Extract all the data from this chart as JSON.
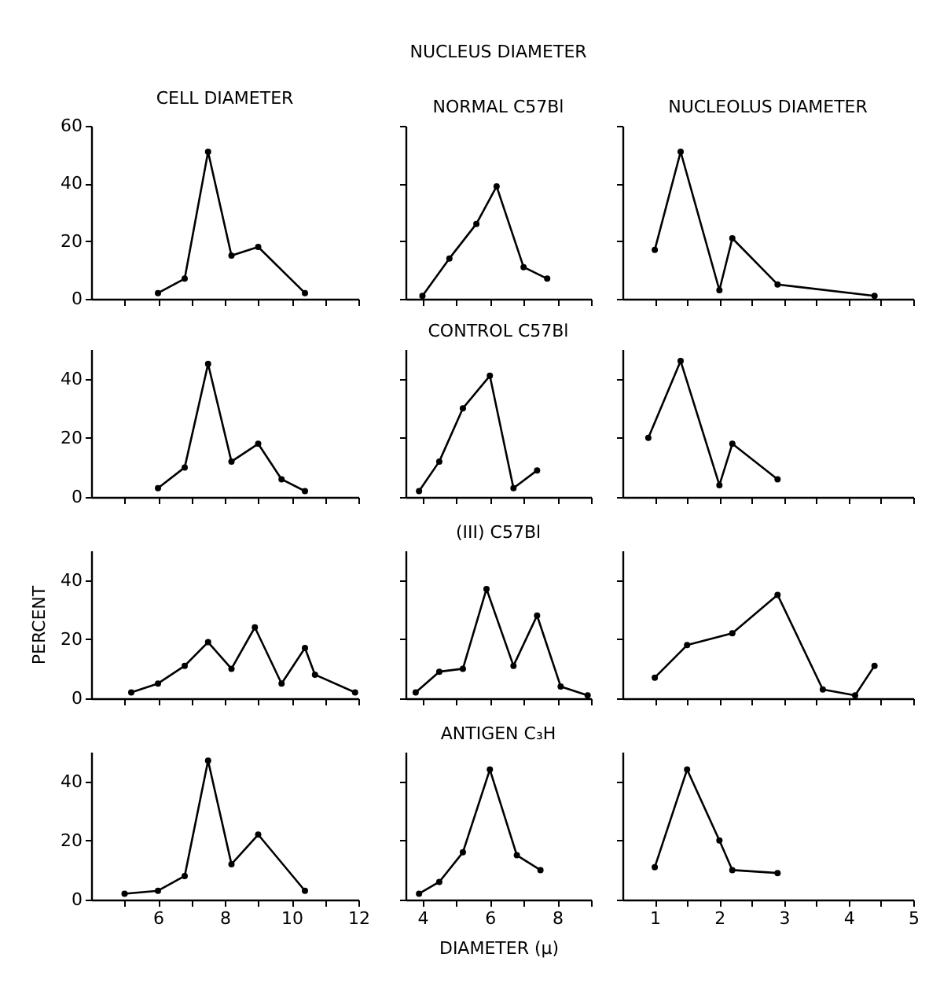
{
  "chart_data": [
    {
      "type": "line",
      "title": "CELL DIAMETER",
      "x": [
        6.0,
        6.8,
        7.5,
        8.2,
        9.0,
        10.4
      ],
      "series": [
        {
          "color": "#000000",
          "values": [
            2,
            7,
            51,
            15,
            18,
            2
          ]
        }
      ],
      "xlim": [
        4,
        12
      ],
      "xticks": [
        {
          "value": 5,
          "label": null
        },
        6,
        {
          "value": 7,
          "label": null
        },
        8,
        {
          "value": 9,
          "label": null
        },
        10,
        {
          "value": 11,
          "label": null
        },
        12
      ],
      "ylim": [
        0,
        60
      ],
      "yticks": [
        0,
        20,
        40,
        60
      ],
      "tick_labels": "y",
      "marker": "circle",
      "line_style": "solid"
    },
    {
      "type": "line",
      "title": "NUCLEUS DIAMETER",
      "subtitle": "NORMAL C57Bl",
      "x": [
        4.0,
        4.8,
        5.6,
        6.2,
        7.0,
        7.7
      ],
      "series": [
        {
          "color": "#000000",
          "values": [
            1,
            14,
            26,
            39,
            11,
            7
          ]
        }
      ],
      "xlim": [
        3.5,
        9
      ],
      "xticks": [
        4,
        {
          "value": 5,
          "label": null
        },
        6,
        {
          "value": 7,
          "label": null
        },
        8,
        {
          "value": 9,
          "label": null
        }
      ],
      "ylim": [
        0,
        60
      ],
      "yticks": [
        0,
        20,
        40,
        60
      ],
      "tick_labels": false,
      "marker": "circle",
      "line_style": "solid"
    },
    {
      "type": "line",
      "title": "NUCLEOLUS DIAMETER",
      "x": [
        1.0,
        1.4,
        2.0,
        2.2,
        2.9,
        4.4
      ],
      "series": [
        {
          "color": "#000000",
          "values": [
            17,
            51,
            3,
            21,
            5,
            1
          ]
        }
      ],
      "xlim": [
        0.5,
        5
      ],
      "xticks": [
        1,
        {
          "value": 1.5,
          "label": null
        },
        2,
        {
          "value": 2.5,
          "label": null
        },
        3,
        {
          "value": 3.5,
          "label": null
        },
        4,
        {
          "value": 4.5,
          "label": null
        },
        5
      ],
      "ylim": [
        0,
        60
      ],
      "yticks": [
        0,
        20,
        40,
        60
      ],
      "tick_labels": false,
      "marker": "circle",
      "line_style": "solid"
    },
    {
      "type": "line",
      "x": [
        6.0,
        6.8,
        7.5,
        8.2,
        9.0,
        9.7,
        10.4
      ],
      "series": [
        {
          "color": "#000000",
          "values": [
            3,
            10,
            45,
            12,
            18,
            6,
            2
          ]
        }
      ],
      "xlim": [
        4,
        12
      ],
      "xticks": [
        {
          "value": 5,
          "label": null
        },
        6,
        {
          "value": 7,
          "label": null
        },
        8,
        {
          "value": 9,
          "label": null
        },
        10,
        {
          "value": 11,
          "label": null
        },
        12
      ],
      "ylim": [
        0,
        50
      ],
      "yticks": [
        0,
        20,
        40
      ],
      "tick_labels": "y",
      "marker": "circle",
      "line_style": "solid"
    },
    {
      "type": "line",
      "subtitle": "CONTROL C57Bl",
      "x": [
        3.9,
        4.5,
        5.2,
        6.0,
        6.7,
        7.4
      ],
      "series": [
        {
          "color": "#000000",
          "values": [
            2,
            12,
            30,
            41,
            3,
            9
          ]
        }
      ],
      "xlim": [
        3.5,
        9
      ],
      "xticks": [
        4,
        {
          "value": 5,
          "label": null
        },
        6,
        {
          "value": 7,
          "label": null
        },
        8,
        {
          "value": 9,
          "label": null
        }
      ],
      "ylim": [
        0,
        50
      ],
      "yticks": [
        0,
        20,
        40
      ],
      "tick_labels": false,
      "marker": "circle",
      "line_style": "solid"
    },
    {
      "type": "line",
      "x": [
        0.9,
        1.4,
        2.0,
        2.2,
        2.9
      ],
      "series": [
        {
          "color": "#000000",
          "values": [
            20,
            46,
            4,
            18,
            6
          ]
        }
      ],
      "xlim": [
        0.5,
        5
      ],
      "xticks": [
        1,
        {
          "value": 1.5,
          "label": null
        },
        2,
        {
          "value": 2.5,
          "label": null
        },
        3,
        {
          "value": 3.5,
          "label": null
        },
        4,
        {
          "value": 4.5,
          "label": null
        },
        5
      ],
      "ylim": [
        0,
        50
      ],
      "yticks": [
        0,
        20,
        40
      ],
      "tick_labels": false,
      "marker": "circle",
      "line_style": "solid"
    },
    {
      "type": "line",
      "ylabel": "PERCENT",
      "x": [
        5.2,
        6.0,
        6.8,
        7.5,
        8.2,
        8.9,
        9.7,
        10.4,
        10.7,
        11.9
      ],
      "series": [
        {
          "color": "#000000",
          "values": [
            2,
            5,
            11,
            19,
            10,
            24,
            5,
            17,
            8,
            2
          ]
        }
      ],
      "xlim": [
        4,
        12
      ],
      "xticks": [
        {
          "value": 5,
          "label": null
        },
        6,
        {
          "value": 7,
          "label": null
        },
        8,
        {
          "value": 9,
          "label": null
        },
        10,
        {
          "value": 11,
          "label": null
        },
        12
      ],
      "ylim": [
        0,
        50
      ],
      "yticks": [
        0,
        20,
        40
      ],
      "tick_labels": "y",
      "marker": "circle",
      "line_style": "solid"
    },
    {
      "type": "line",
      "subtitle": "(III) C57Bl",
      "x": [
        3.8,
        4.5,
        5.2,
        5.9,
        6.7,
        7.4,
        8.1,
        8.9
      ],
      "series": [
        {
          "color": "#000000",
          "values": [
            2,
            9,
            10,
            37,
            11,
            28,
            4,
            1
          ]
        }
      ],
      "xlim": [
        3.5,
        9
      ],
      "xticks": [
        4,
        {
          "value": 5,
          "label": null
        },
        6,
        {
          "value": 7,
          "label": null
        },
        8,
        {
          "value": 9,
          "label": null
        }
      ],
      "ylim": [
        0,
        50
      ],
      "yticks": [
        0,
        20,
        40
      ],
      "tick_labels": false,
      "marker": "circle",
      "line_style": "solid"
    },
    {
      "type": "line",
      "x": [
        1.0,
        1.5,
        2.2,
        2.9,
        3.6,
        4.1,
        4.4
      ],
      "series": [
        {
          "color": "#000000",
          "values": [
            7,
            18,
            22,
            35,
            3,
            1,
            11
          ]
        }
      ],
      "xlim": [
        0.5,
        5
      ],
      "xticks": [
        1,
        {
          "value": 1.5,
          "label": null
        },
        2,
        {
          "value": 2.5,
          "label": null
        },
        3,
        {
          "value": 3.5,
          "label": null
        },
        4,
        {
          "value": 4.5,
          "label": null
        },
        5
      ],
      "ylim": [
        0,
        50
      ],
      "yticks": [
        0,
        20,
        40
      ],
      "tick_labels": false,
      "marker": "circle",
      "line_style": "solid"
    },
    {
      "type": "line",
      "x": [
        5.0,
        6.0,
        6.8,
        7.5,
        8.2,
        9.0,
        10.4
      ],
      "series": [
        {
          "color": "#000000",
          "values": [
            2,
            3,
            8,
            47,
            12,
            22,
            3
          ]
        }
      ],
      "xlim": [
        4,
        12
      ],
      "xticks": [
        {
          "value": 5,
          "label": null
        },
        6,
        {
          "value": 7,
          "label": null
        },
        8,
        {
          "value": 9,
          "label": null
        },
        10,
        {
          "value": 11,
          "label": null
        },
        12
      ],
      "ylim": [
        0,
        50
      ],
      "yticks": [
        0,
        20,
        40
      ],
      "marker": "circle",
      "line_style": "solid"
    },
    {
      "type": "line",
      "subtitle": "ANTIGEN C₃H",
      "xlabel": "DIAMETER (μ)",
      "x": [
        3.9,
        4.5,
        5.2,
        6.0,
        6.8,
        7.5
      ],
      "series": [
        {
          "color": "#000000",
          "values": [
            2,
            6,
            16,
            44,
            15,
            10
          ]
        }
      ],
      "xlim": [
        3.5,
        9
      ],
      "xticks": [
        4,
        {
          "value": 5,
          "label": null
        },
        6,
        {
          "value": 7,
          "label": null
        },
        8,
        {
          "value": 9,
          "label": null
        }
      ],
      "ylim": [
        0,
        50
      ],
      "yticks": [
        0,
        20,
        40
      ],
      "tick_labels": "x",
      "marker": "circle",
      "line_style": "solid"
    },
    {
      "type": "line",
      "x": [
        1.0,
        1.5,
        2.0,
        2.2,
        2.9
      ],
      "series": [
        {
          "color": "#000000",
          "values": [
            11,
            44,
            20,
            10,
            9
          ]
        }
      ],
      "xlim": [
        0.5,
        5
      ],
      "xticks": [
        1,
        {
          "value": 1.5,
          "label": null
        },
        2,
        {
          "value": 2.5,
          "label": null
        },
        3,
        {
          "value": 3.5,
          "label": null
        },
        4,
        {
          "value": 4.5,
          "label": null
        },
        5
      ],
      "ylim": [
        0,
        50
      ],
      "yticks": [
        0,
        20,
        40
      ],
      "tick_labels": "x",
      "marker": "circle",
      "line_style": "solid"
    }
  ]
}
